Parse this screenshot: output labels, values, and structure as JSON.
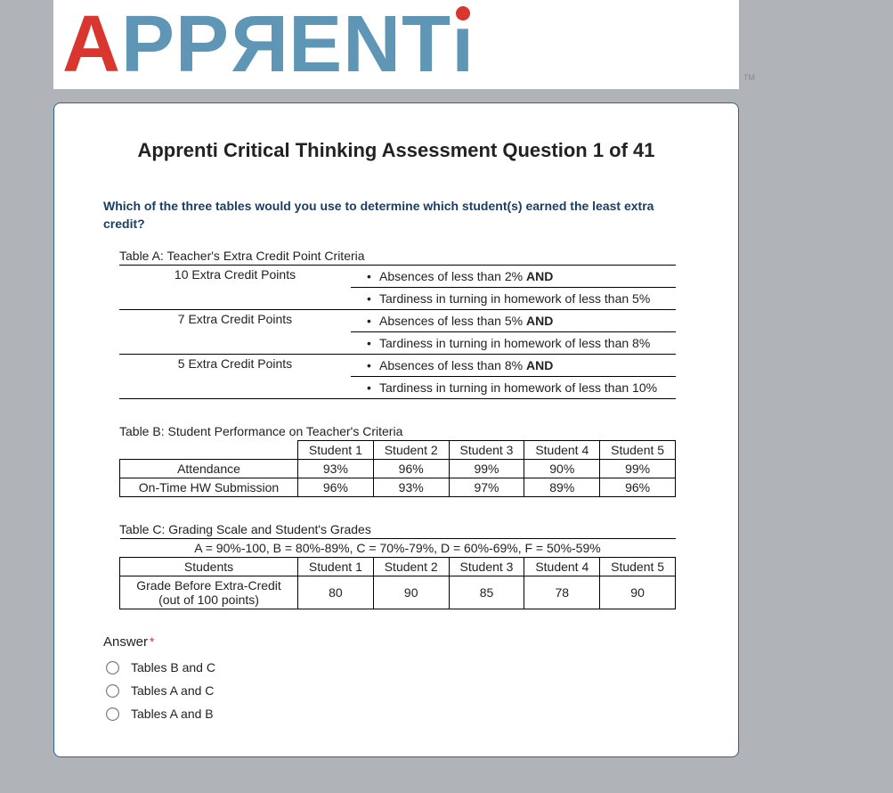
{
  "logo": {
    "letters": [
      {
        "char": "A",
        "color": "#d9362f"
      },
      {
        "char": "P",
        "color": "#5f96b6"
      },
      {
        "char": "P",
        "color": "#5f96b6"
      },
      {
        "char": "R",
        "color": "#5f96b6"
      },
      {
        "char": "E",
        "color": "#5f96b6"
      },
      {
        "char": "N",
        "color": "#5f96b6"
      },
      {
        "char": "T",
        "color": "#5f96b6"
      },
      {
        "char": "i",
        "color": "#5f96b6",
        "dot_color": "#d9362f"
      }
    ],
    "tm": "TM"
  },
  "title": "Apprenti Critical Thinking Assessment Question 1 of 41",
  "question": "Which of the three tables would you use to determine which student(s) earned the least extra credit?",
  "tableA": {
    "caption": "Table A: Teacher's Extra Credit Point Criteria",
    "rows": [
      {
        "points": "10 Extra Credit Points",
        "criteria": [
          {
            "text": "Absences of less than 2%",
            "bold_suffix": "AND"
          },
          {
            "text": "Tardiness in turning in homework of less than 5%"
          }
        ]
      },
      {
        "points": "7 Extra Credit Points",
        "criteria": [
          {
            "text": "Absences of less than 5%",
            "bold_suffix": "AND"
          },
          {
            "text": "Tardiness in turning in homework of less than 8%"
          }
        ]
      },
      {
        "points": "5 Extra Credit Points",
        "criteria": [
          {
            "text": "Absences of less than 8%",
            "bold_suffix": "AND"
          },
          {
            "text": "Tardiness in turning in homework of less than 10%"
          }
        ]
      }
    ]
  },
  "tableB": {
    "caption": "Table B: Student Performance on Teacher's Criteria",
    "columns": [
      "",
      "Student 1",
      "Student 2",
      "Student 3",
      "Student 4",
      "Student 5"
    ],
    "rows": [
      {
        "label": "Attendance",
        "vals": [
          "93%",
          "96%",
          "99%",
          "90%",
          "99%"
        ]
      },
      {
        "label": "On-Time HW Submission",
        "vals": [
          "96%",
          "93%",
          "97%",
          "89%",
          "96%"
        ]
      }
    ]
  },
  "tableC": {
    "caption": "Table C: Grading Scale and Student's Grades",
    "scale": "A = 90%-100, B = 80%-89%, C = 70%-79%, D = 60%-69%, F = 50%-59%",
    "columns": [
      "Students",
      "Student 1",
      "Student 2",
      "Student 3",
      "Student 4",
      "Student 5"
    ],
    "row": {
      "label": "Grade Before Extra-Credit (out of 100 points)",
      "vals": [
        "80",
        "90",
        "85",
        "78",
        "90"
      ]
    }
  },
  "answer": {
    "label": "Answer",
    "required": "*",
    "options": [
      "Tables B and C",
      "Tables A and C",
      "Tables A and B"
    ]
  },
  "colors": {
    "page_bg": "#b0b4b8",
    "card_border": "#2e628f",
    "question_color": "#1a3e66",
    "logo_red": "#d9362f",
    "logo_blue": "#5f96b6"
  }
}
